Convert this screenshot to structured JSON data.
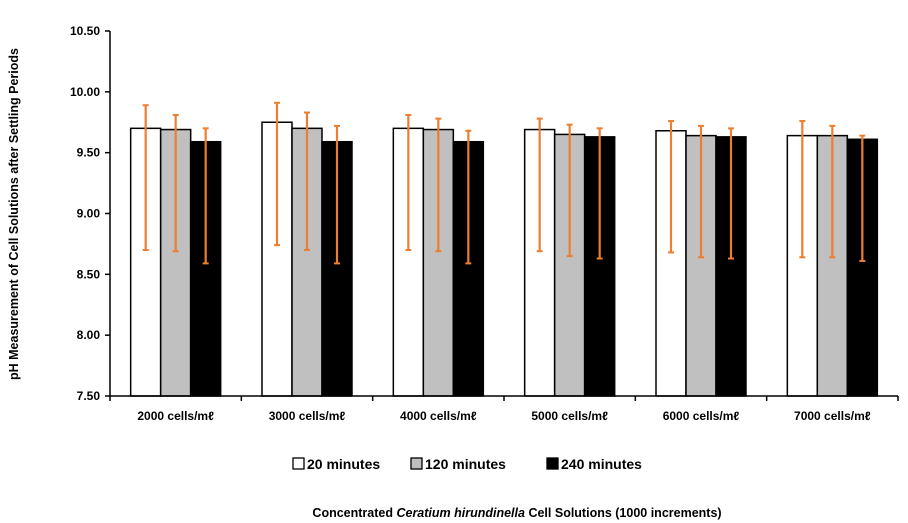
{
  "chart_data": {
    "type": "bar",
    "categories": [
      "2000 cells/mℓ",
      "3000 cells/mℓ",
      "4000 cells/mℓ",
      "5000 cells/mℓ",
      "6000 cells/mℓ",
      "7000 cells/mℓ"
    ],
    "series": [
      {
        "name": "20 minutes",
        "values": [
          9.7,
          9.75,
          9.7,
          9.69,
          9.68,
          9.64
        ],
        "err_low": [
          8.7,
          8.74,
          8.7,
          8.69,
          8.68,
          8.64
        ],
        "err_high": [
          9.89,
          9.91,
          9.81,
          9.78,
          9.76,
          9.76
        ],
        "fill": "#ffffff"
      },
      {
        "name": "120 minutes",
        "values": [
          9.69,
          9.7,
          9.69,
          9.65,
          9.64,
          9.64
        ],
        "err_low": [
          8.69,
          8.7,
          8.69,
          8.65,
          8.64,
          8.64
        ],
        "err_high": [
          9.81,
          9.83,
          9.78,
          9.73,
          9.72,
          9.72
        ],
        "fill": "#c0c0c0"
      },
      {
        "name": "240 minutes",
        "values": [
          9.59,
          9.59,
          9.59,
          9.63,
          9.63,
          9.61
        ],
        "err_low": [
          8.59,
          8.59,
          8.59,
          8.63,
          8.63,
          8.61
        ],
        "err_high": [
          9.7,
          9.72,
          9.68,
          9.7,
          9.7,
          9.64
        ],
        "fill": "#000000"
      }
    ],
    "ylim": [
      7.5,
      10.5
    ],
    "yticks": [
      "7.50",
      "8.00",
      "8.50",
      "9.00",
      "9.50",
      "10.00",
      "10.50"
    ],
    "ylabel": "pH Measurement of Cell Solutions after Settling Periods",
    "xlabel_parts": [
      "Concentrated ",
      "Ceratium hirundinella",
      " Cell Solutions (1000 increments)"
    ],
    "error_bar_color": "#ed7d31",
    "grid": false,
    "legend_position": "bottom"
  }
}
